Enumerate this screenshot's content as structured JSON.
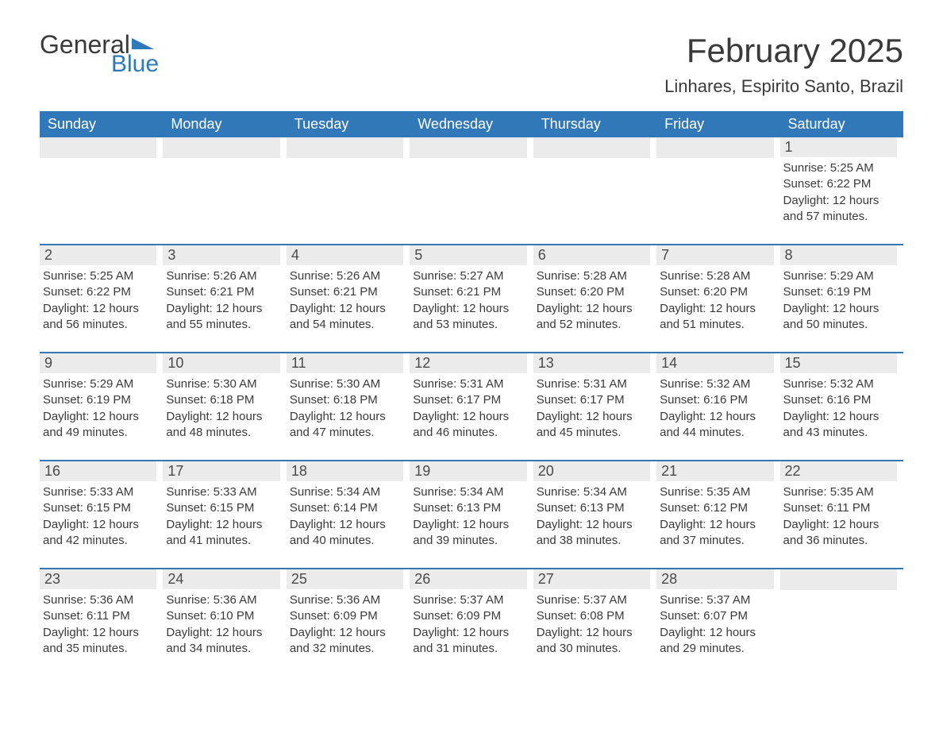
{
  "colors": {
    "header_bg": "#3178b8",
    "header_text": "#ffffff",
    "daynum_bg": "#ebebeb",
    "text": "#3a3a3a",
    "logo_blue": "#2d79b9",
    "page_bg": "#ffffff",
    "week_border": "#3178b8"
  },
  "fonts": {
    "family": "Segoe UI, Arial, sans-serif",
    "month_title_size_pt": 32,
    "location_size_pt": 17,
    "dayhead_size_pt": 14,
    "daynum_size_pt": 14,
    "body_size_pt": 11
  },
  "logo": {
    "line1": "General",
    "line2": "Blue",
    "triangle_color": "#2d79b9"
  },
  "title": "February 2025",
  "location": "Linhares, Espirito Santo, Brazil",
  "day_headers": [
    "Sunday",
    "Monday",
    "Tuesday",
    "Wednesday",
    "Thursday",
    "Friday",
    "Saturday"
  ],
  "weeks": [
    [
      null,
      null,
      null,
      null,
      null,
      null,
      {
        "n": "1",
        "sunrise": "Sunrise: 5:25 AM",
        "sunset": "Sunset: 6:22 PM",
        "day": "Daylight: 12 hours and 57 minutes."
      }
    ],
    [
      {
        "n": "2",
        "sunrise": "Sunrise: 5:25 AM",
        "sunset": "Sunset: 6:22 PM",
        "day": "Daylight: 12 hours and 56 minutes."
      },
      {
        "n": "3",
        "sunrise": "Sunrise: 5:26 AM",
        "sunset": "Sunset: 6:21 PM",
        "day": "Daylight: 12 hours and 55 minutes."
      },
      {
        "n": "4",
        "sunrise": "Sunrise: 5:26 AM",
        "sunset": "Sunset: 6:21 PM",
        "day": "Daylight: 12 hours and 54 minutes."
      },
      {
        "n": "5",
        "sunrise": "Sunrise: 5:27 AM",
        "sunset": "Sunset: 6:21 PM",
        "day": "Daylight: 12 hours and 53 minutes."
      },
      {
        "n": "6",
        "sunrise": "Sunrise: 5:28 AM",
        "sunset": "Sunset: 6:20 PM",
        "day": "Daylight: 12 hours and 52 minutes."
      },
      {
        "n": "7",
        "sunrise": "Sunrise: 5:28 AM",
        "sunset": "Sunset: 6:20 PM",
        "day": "Daylight: 12 hours and 51 minutes."
      },
      {
        "n": "8",
        "sunrise": "Sunrise: 5:29 AM",
        "sunset": "Sunset: 6:19 PM",
        "day": "Daylight: 12 hours and 50 minutes."
      }
    ],
    [
      {
        "n": "9",
        "sunrise": "Sunrise: 5:29 AM",
        "sunset": "Sunset: 6:19 PM",
        "day": "Daylight: 12 hours and 49 minutes."
      },
      {
        "n": "10",
        "sunrise": "Sunrise: 5:30 AM",
        "sunset": "Sunset: 6:18 PM",
        "day": "Daylight: 12 hours and 48 minutes."
      },
      {
        "n": "11",
        "sunrise": "Sunrise: 5:30 AM",
        "sunset": "Sunset: 6:18 PM",
        "day": "Daylight: 12 hours and 47 minutes."
      },
      {
        "n": "12",
        "sunrise": "Sunrise: 5:31 AM",
        "sunset": "Sunset: 6:17 PM",
        "day": "Daylight: 12 hours and 46 minutes."
      },
      {
        "n": "13",
        "sunrise": "Sunrise: 5:31 AM",
        "sunset": "Sunset: 6:17 PM",
        "day": "Daylight: 12 hours and 45 minutes."
      },
      {
        "n": "14",
        "sunrise": "Sunrise: 5:32 AM",
        "sunset": "Sunset: 6:16 PM",
        "day": "Daylight: 12 hours and 44 minutes."
      },
      {
        "n": "15",
        "sunrise": "Sunrise: 5:32 AM",
        "sunset": "Sunset: 6:16 PM",
        "day": "Daylight: 12 hours and 43 minutes."
      }
    ],
    [
      {
        "n": "16",
        "sunrise": "Sunrise: 5:33 AM",
        "sunset": "Sunset: 6:15 PM",
        "day": "Daylight: 12 hours and 42 minutes."
      },
      {
        "n": "17",
        "sunrise": "Sunrise: 5:33 AM",
        "sunset": "Sunset: 6:15 PM",
        "day": "Daylight: 12 hours and 41 minutes."
      },
      {
        "n": "18",
        "sunrise": "Sunrise: 5:34 AM",
        "sunset": "Sunset: 6:14 PM",
        "day": "Daylight: 12 hours and 40 minutes."
      },
      {
        "n": "19",
        "sunrise": "Sunrise: 5:34 AM",
        "sunset": "Sunset: 6:13 PM",
        "day": "Daylight: 12 hours and 39 minutes."
      },
      {
        "n": "20",
        "sunrise": "Sunrise: 5:34 AM",
        "sunset": "Sunset: 6:13 PM",
        "day": "Daylight: 12 hours and 38 minutes."
      },
      {
        "n": "21",
        "sunrise": "Sunrise: 5:35 AM",
        "sunset": "Sunset: 6:12 PM",
        "day": "Daylight: 12 hours and 37 minutes."
      },
      {
        "n": "22",
        "sunrise": "Sunrise: 5:35 AM",
        "sunset": "Sunset: 6:11 PM",
        "day": "Daylight: 12 hours and 36 minutes."
      }
    ],
    [
      {
        "n": "23",
        "sunrise": "Sunrise: 5:36 AM",
        "sunset": "Sunset: 6:11 PM",
        "day": "Daylight: 12 hours and 35 minutes."
      },
      {
        "n": "24",
        "sunrise": "Sunrise: 5:36 AM",
        "sunset": "Sunset: 6:10 PM",
        "day": "Daylight: 12 hours and 34 minutes."
      },
      {
        "n": "25",
        "sunrise": "Sunrise: 5:36 AM",
        "sunset": "Sunset: 6:09 PM",
        "day": "Daylight: 12 hours and 32 minutes."
      },
      {
        "n": "26",
        "sunrise": "Sunrise: 5:37 AM",
        "sunset": "Sunset: 6:09 PM",
        "day": "Daylight: 12 hours and 31 minutes."
      },
      {
        "n": "27",
        "sunrise": "Sunrise: 5:37 AM",
        "sunset": "Sunset: 6:08 PM",
        "day": "Daylight: 12 hours and 30 minutes."
      },
      {
        "n": "28",
        "sunrise": "Sunrise: 5:37 AM",
        "sunset": "Sunset: 6:07 PM",
        "day": "Daylight: 12 hours and 29 minutes."
      },
      null
    ]
  ]
}
